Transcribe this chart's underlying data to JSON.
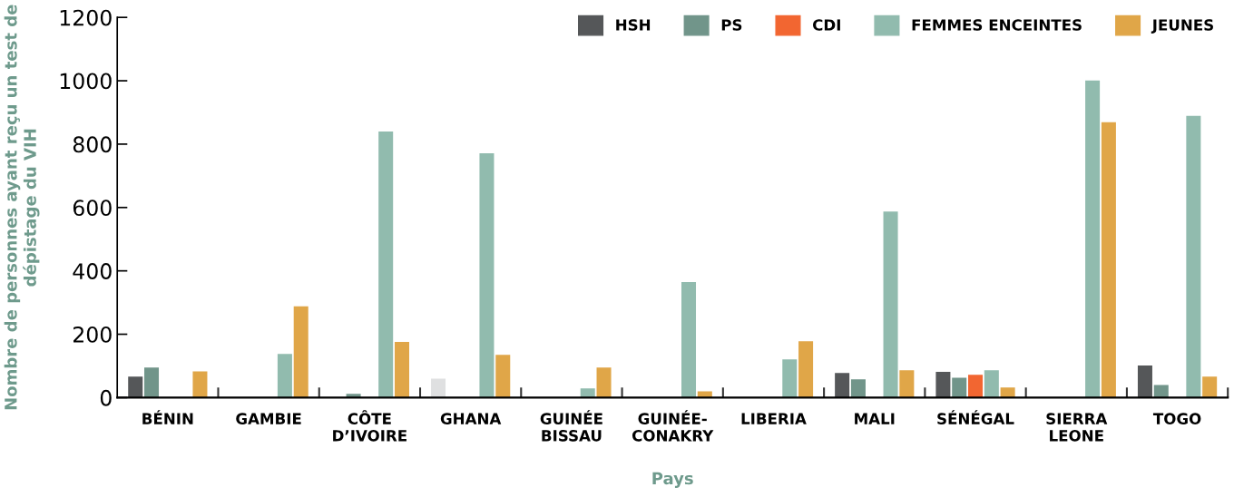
{
  "chart_data": {
    "type": "bar",
    "xlabel": "Pays",
    "ylabel": "Nombre de personnes ayant reçu un test de dépistage du VIH",
    "categories": [
      "BÉNIN",
      "GAMBIE",
      "CÔTE\nD’IVOIRE",
      "GHANA",
      "GUINÉE\nBISSAU",
      "GUINÉE-\nCONAKRY",
      "LIBERIA",
      "MALI",
      "SÉNÉGAL",
      "SIERRA\nLEONE",
      "TOGO"
    ],
    "series": [
      {
        "name": "HSH",
        "color": "#555759",
        "colors": [
          "#555759",
          "#555759",
          "#555759",
          "#dfe0e1",
          "#555759",
          "#555759",
          "#555759",
          "#555759",
          "#555759",
          "#555759",
          "#555759"
        ],
        "values": [
          66,
          null,
          null,
          60,
          null,
          null,
          null,
          78,
          81,
          null,
          101
        ]
      },
      {
        "name": "PS",
        "color": "#71958a",
        "values": [
          95,
          null,
          12,
          null,
          null,
          null,
          null,
          58,
          63,
          null,
          40
        ]
      },
      {
        "name": "CDI",
        "color": "#f26631",
        "values": [
          null,
          null,
          null,
          null,
          null,
          null,
          null,
          null,
          72,
          null,
          null
        ]
      },
      {
        "name": "FEMMES ENCEINTES",
        "color": "#91bbae",
        "values": [
          null,
          138,
          840,
          771,
          29,
          365,
          121,
          587,
          86,
          1001,
          889
        ]
      },
      {
        "name": "JEUNES",
        "color": "#e0a648",
        "values": [
          83,
          288,
          176,
          135,
          95,
          20,
          178,
          86,
          32,
          869,
          66
        ]
      }
    ],
    "ylim": [
      0,
      1200
    ],
    "yticks": [
      0,
      200,
      400,
      600,
      800,
      1000,
      1200
    ],
    "grid": false,
    "legend": "top right"
  }
}
